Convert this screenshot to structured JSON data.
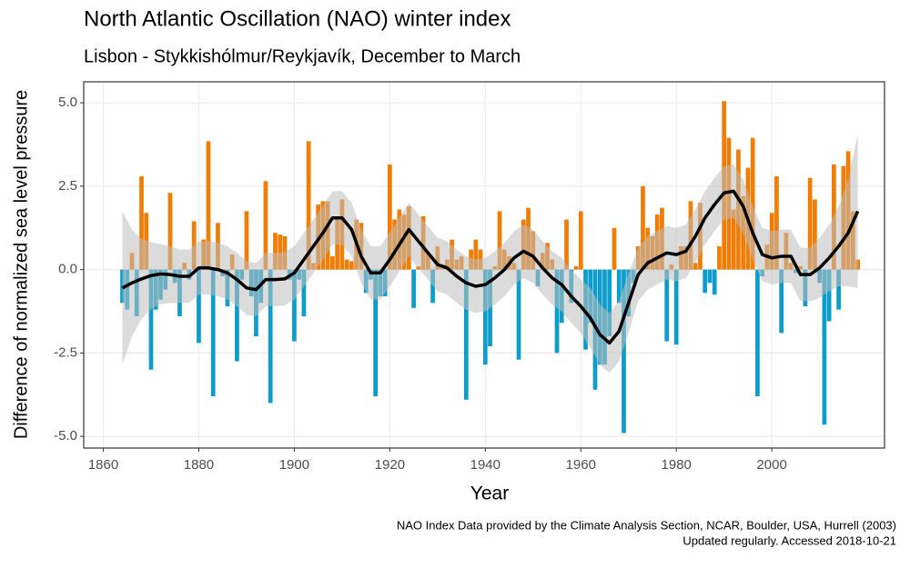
{
  "chart_data": {
    "type": "bar",
    "title": "North Atlantic Oscillation (NAO) winter index",
    "subtitle": "Lisbon - Stykkishólmur/Reykjavík, December to March",
    "xlabel": "Year",
    "ylabel": "Difference of normalized sea level pressure",
    "caption": [
      "NAO Index Data provided by the Climate Analysis Section, NCAR, Boulder, USA, Hurrell (2003)",
      "Updated regularly. Accessed 2018-10-21"
    ],
    "x": [
      1864,
      1865,
      1866,
      1867,
      1868,
      1869,
      1870,
      1871,
      1872,
      1873,
      1874,
      1875,
      1876,
      1877,
      1878,
      1879,
      1880,
      1881,
      1882,
      1883,
      1884,
      1885,
      1886,
      1887,
      1888,
      1889,
      1890,
      1891,
      1892,
      1893,
      1894,
      1895,
      1896,
      1897,
      1898,
      1899,
      1900,
      1901,
      1902,
      1903,
      1904,
      1905,
      1906,
      1907,
      1908,
      1909,
      1910,
      1911,
      1912,
      1913,
      1914,
      1915,
      1916,
      1917,
      1918,
      1919,
      1920,
      1921,
      1922,
      1923,
      1924,
      1925,
      1926,
      1927,
      1928,
      1929,
      1930,
      1931,
      1932,
      1933,
      1934,
      1935,
      1936,
      1937,
      1938,
      1939,
      1940,
      1941,
      1942,
      1943,
      1944,
      1945,
      1946,
      1947,
      1948,
      1949,
      1950,
      1951,
      1952,
      1953,
      1954,
      1955,
      1956,
      1957,
      1958,
      1959,
      1960,
      1961,
      1962,
      1963,
      1964,
      1965,
      1966,
      1967,
      1968,
      1969,
      1970,
      1971,
      1972,
      1973,
      1974,
      1975,
      1976,
      1977,
      1978,
      1979,
      1980,
      1981,
      1982,
      1983,
      1984,
      1985,
      1986,
      1987,
      1988,
      1989,
      1990,
      1991,
      1992,
      1993,
      1994,
      1995,
      1996,
      1997,
      1998,
      1999,
      2000,
      2001,
      2002,
      2003,
      2004,
      2005,
      2006,
      2007,
      2008,
      2009,
      2010,
      2011,
      2012,
      2013,
      2014,
      2015,
      2016,
      2017,
      2018
    ],
    "values": [
      -1.0,
      -1.2,
      0.5,
      -1.4,
      2.8,
      1.7,
      -3.0,
      -1.2,
      -0.9,
      -0.6,
      2.3,
      -0.4,
      -1.4,
      0.2,
      -0.3,
      1.45,
      -2.2,
      0.9,
      3.85,
      -3.8,
      1.4,
      -0.2,
      -1.1,
      0.45,
      -2.75,
      -0.3,
      1.75,
      -0.8,
      -2.0,
      -1.0,
      2.65,
      -4.0,
      1.1,
      1.05,
      1.0,
      -0.3,
      -2.15,
      -0.3,
      -1.4,
      3.85,
      0.2,
      1.95,
      2.05,
      2.05,
      0.4,
      1.5,
      2.1,
      0.3,
      0.25,
      1.5,
      1.4,
      -0.7,
      -0.3,
      -3.8,
      -0.8,
      -0.8,
      3.15,
      1.5,
      1.8,
      1.65,
      1.9,
      -1.15,
      0.1,
      1.6,
      0.5,
      -1.0,
      0.7,
      0.15,
      0.3,
      0.9,
      0.3,
      0.4,
      -3.9,
      0.6,
      0.9,
      0.6,
      -2.85,
      -2.3,
      0.1,
      1.75,
      0.6,
      0.4,
      0.2,
      -2.7,
      1.5,
      1.85,
      1.15,
      -0.5,
      0.5,
      0.8,
      0.3,
      -2.5,
      -1.6,
      1.5,
      -1.0,
      0.1,
      1.75,
      -2.4,
      -1.6,
      -3.6,
      -2.85,
      -2.85,
      -2.0,
      1.25,
      -1.0,
      -4.9,
      -1.4,
      -0.4,
      0.7,
      2.5,
      1.25,
      1.0,
      1.65,
      1.85,
      -2.15,
      0.15,
      -2.25,
      0.7,
      0.7,
      2.05,
      0.2,
      2.0,
      -0.7,
      -0.4,
      -0.75,
      0.7,
      5.05,
      3.95,
      1.8,
      3.6,
      2.2,
      3.05,
      3.95,
      -3.8,
      -0.2,
      0.75,
      1.7,
      2.8,
      -1.9,
      1.1,
      0.2,
      -0.1,
      0.1,
      -1.1,
      2.75,
      2.1,
      -0.4,
      -4.65,
      -1.55,
      3.15,
      -1.2,
      3.1,
      3.55,
      1.75,
      0.3
    ],
    "positive_color": "#ef7d06",
    "negative_color": "#0d9dcb",
    "smooth": {
      "color": "#000000",
      "band_color": "#bdbdbd",
      "band_opacity": 0.55,
      "x": [
        1864,
        1866,
        1868,
        1870,
        1872,
        1874,
        1876,
        1878,
        1880,
        1882,
        1884,
        1886,
        1888,
        1890,
        1892,
        1894,
        1896,
        1898,
        1900,
        1902,
        1904,
        1906,
        1908,
        1910,
        1912,
        1914,
        1916,
        1918,
        1920,
        1922,
        1924,
        1926,
        1928,
        1930,
        1932,
        1934,
        1936,
        1938,
        1940,
        1942,
        1944,
        1946,
        1948,
        1950,
        1952,
        1954,
        1956,
        1958,
        1960,
        1962,
        1964,
        1966,
        1968,
        1970,
        1972,
        1974,
        1976,
        1978,
        1980,
        1982,
        1984,
        1986,
        1988,
        1990,
        1992,
        1994,
        1996,
        1998,
        2000,
        2002,
        2004,
        2006,
        2008,
        2010,
        2012,
        2014,
        2016,
        2018
      ],
      "values": [
        -0.55,
        -0.4,
        -0.28,
        -0.18,
        -0.13,
        -0.15,
        -0.2,
        -0.2,
        0.05,
        0.05,
        0.0,
        -0.1,
        -0.3,
        -0.55,
        -0.6,
        -0.3,
        -0.3,
        -0.28,
        -0.1,
        0.3,
        0.7,
        1.1,
        1.55,
        1.55,
        1.2,
        0.4,
        -0.1,
        -0.1,
        0.3,
        0.75,
        1.2,
        0.85,
        0.5,
        0.15,
        0.05,
        -0.2,
        -0.4,
        -0.5,
        -0.45,
        -0.25,
        0.0,
        0.35,
        0.55,
        0.4,
        0.05,
        -0.25,
        -0.45,
        -0.8,
        -1.1,
        -1.45,
        -1.95,
        -2.2,
        -1.85,
        -1.0,
        -0.15,
        0.2,
        0.35,
        0.5,
        0.45,
        0.55,
        1.0,
        1.55,
        1.95,
        2.3,
        2.35,
        1.9,
        1.1,
        0.45,
        0.35,
        0.4,
        0.4,
        -0.15,
        -0.15,
        0.05,
        0.35,
        0.7,
        1.1,
        1.75
      ],
      "lower": [
        -2.85,
        -2.0,
        -1.48,
        -1.18,
        -1.03,
        -1.0,
        -1.0,
        -1.0,
        -0.75,
        -0.75,
        -0.8,
        -0.9,
        -1.1,
        -1.35,
        -1.4,
        -1.1,
        -1.1,
        -1.08,
        -0.9,
        -0.5,
        -0.1,
        0.3,
        0.75,
        0.75,
        0.4,
        -0.4,
        -0.9,
        -0.9,
        -0.5,
        -0.05,
        0.4,
        0.05,
        -0.3,
        -0.65,
        -0.75,
        -1.0,
        -1.2,
        -1.3,
        -1.25,
        -1.05,
        -0.8,
        -0.45,
        -0.25,
        -0.4,
        -0.75,
        -1.05,
        -1.25,
        -1.6,
        -1.9,
        -2.35,
        -2.85,
        -3.1,
        -2.75,
        -1.9,
        -0.95,
        -0.6,
        -0.45,
        -0.3,
        -0.35,
        -0.25,
        0.2,
        0.75,
        1.15,
        1.5,
        1.55,
        1.1,
        0.3,
        -0.35,
        -0.45,
        -0.4,
        -0.4,
        -0.95,
        -0.95,
        -0.85,
        -0.65,
        -0.5,
        -0.5,
        -0.55
      ],
      "upper": [
        1.75,
        1.2,
        0.92,
        0.82,
        0.77,
        0.7,
        0.6,
        0.6,
        0.85,
        0.85,
        0.8,
        0.7,
        0.5,
        0.25,
        0.2,
        0.5,
        0.5,
        0.52,
        0.7,
        1.1,
        1.5,
        1.9,
        2.35,
        2.35,
        2.0,
        1.2,
        0.7,
        0.7,
        1.1,
        1.55,
        2.0,
        1.65,
        1.3,
        0.95,
        0.85,
        0.6,
        0.4,
        0.3,
        0.35,
        0.55,
        0.8,
        1.15,
        1.35,
        1.2,
        0.85,
        0.55,
        0.35,
        0.0,
        -0.3,
        -0.55,
        -1.05,
        -1.3,
        -0.95,
        -0.1,
        0.65,
        1.0,
        1.15,
        1.3,
        1.25,
        1.35,
        1.8,
        2.35,
        2.75,
        3.1,
        3.15,
        2.7,
        1.9,
        1.25,
        1.15,
        1.2,
        1.2,
        0.65,
        0.65,
        0.95,
        1.35,
        1.9,
        2.7,
        4.05
      ]
    },
    "xlim": [
      1855.9,
      2023.6
    ],
    "ylim": [
      -5.35,
      5.63
    ],
    "xticks": [
      1860,
      1880,
      1900,
      1920,
      1940,
      1960,
      1980,
      2000
    ],
    "yticks": [
      {
        "value": -5,
        "label": "-5.0"
      },
      {
        "value": -2.5,
        "label": "-2.5"
      },
      {
        "value": 0,
        "label": "0.0"
      },
      {
        "value": 2.5,
        "label": "2.5"
      },
      {
        "value": 5,
        "label": "5.0"
      }
    ],
    "grid": true
  }
}
